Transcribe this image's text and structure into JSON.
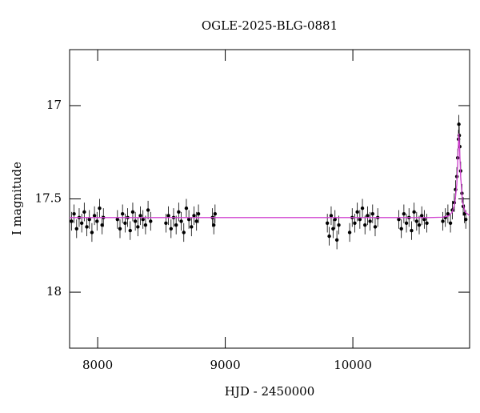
{
  "chart_data": {
    "type": "scatter",
    "title": "OGLE-2025-BLG-0881",
    "x_label": "HJD - 2450000",
    "y_label": "I magnitude",
    "xlim": [
      7780,
      10915
    ],
    "ylim": [
      18.3,
      16.7
    ],
    "xticks": [
      8000,
      9000,
      10000
    ],
    "yticks": [
      17,
      17.5,
      18
    ],
    "yerr": 0.05,
    "series": [
      {
        "name": "data",
        "color": "#000000",
        "x": [
          7795,
          7815,
          7835,
          7855,
          7875,
          7895,
          7915,
          7935,
          7955,
          7975,
          7995,
          8015,
          8035,
          8045,
          8155,
          8175,
          8195,
          8215,
          8235,
          8255,
          8275,
          8295,
          8315,
          8335,
          8355,
          8375,
          8395,
          8415,
          8535,
          8555,
          8575,
          8595,
          8615,
          8635,
          8655,
          8675,
          8695,
          8715,
          8735,
          8755,
          8775,
          8790,
          8900,
          8910,
          8920,
          9800,
          9815,
          9830,
          9845,
          9860,
          9875,
          9890,
          9975,
          9995,
          10015,
          10035,
          10055,
          10075,
          10095,
          10115,
          10135,
          10155,
          10175,
          10195,
          10360,
          10380,
          10400,
          10420,
          10440,
          10460,
          10480,
          10500,
          10520,
          10540,
          10560,
          10580,
          10705,
          10725,
          10745,
          10765,
          10780,
          10795,
          10805,
          10815,
          10822,
          10828,
          10831,
          10834,
          10838,
          10845,
          10855,
          10865,
          10875,
          10885
        ],
        "values": [
          17.62,
          17.58,
          17.66,
          17.6,
          17.63,
          17.57,
          17.65,
          17.61,
          17.68,
          17.59,
          17.62,
          17.55,
          17.64,
          17.6,
          17.61,
          17.66,
          17.58,
          17.63,
          17.6,
          17.67,
          17.57,
          17.62,
          17.65,
          17.59,
          17.61,
          17.64,
          17.56,
          17.62,
          17.63,
          17.59,
          17.66,
          17.6,
          17.64,
          17.57,
          17.62,
          17.68,
          17.55,
          17.61,
          17.65,
          17.59,
          17.62,
          17.58,
          17.6,
          17.64,
          17.58,
          17.63,
          17.7,
          17.59,
          17.66,
          17.61,
          17.72,
          17.64,
          17.68,
          17.6,
          17.63,
          17.57,
          17.61,
          17.55,
          17.64,
          17.59,
          17.62,
          17.58,
          17.65,
          17.6,
          17.61,
          17.66,
          17.58,
          17.63,
          17.6,
          17.67,
          17.57,
          17.62,
          17.64,
          17.59,
          17.61,
          17.63,
          17.62,
          17.6,
          17.58,
          17.63,
          17.56,
          17.52,
          17.45,
          17.38,
          17.28,
          17.18,
          17.1,
          17.16,
          17.22,
          17.35,
          17.47,
          17.54,
          17.58,
          17.61
        ]
      },
      {
        "name": "model",
        "color": "#d040d0",
        "line": true,
        "x": [
          7780,
          10600,
          10700,
          10750,
          10780,
          10800,
          10815,
          10825,
          10830,
          10835,
          10845,
          10860,
          10880,
          10915
        ],
        "values": [
          17.6,
          17.6,
          17.598,
          17.592,
          17.57,
          17.52,
          17.42,
          17.25,
          17.15,
          17.2,
          17.38,
          17.52,
          17.57,
          17.59
        ]
      }
    ]
  }
}
